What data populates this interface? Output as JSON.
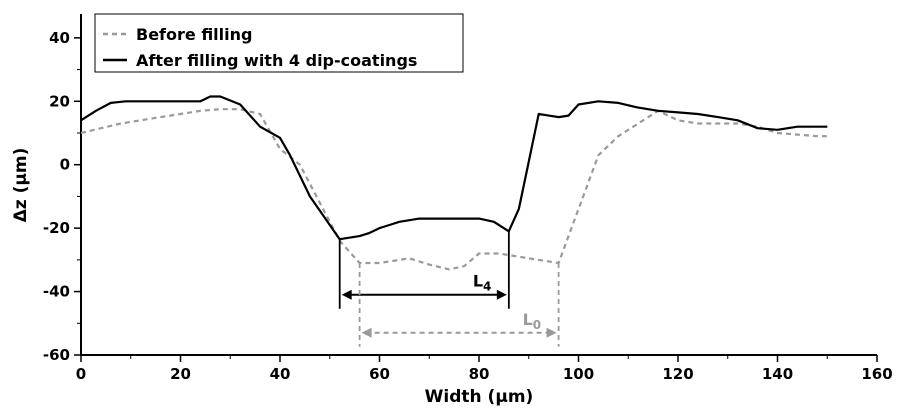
{
  "chart_data": {
    "type": "line",
    "xlabel": "Width (µm)",
    "ylabel": "Δz (µm)",
    "xlim": [
      0,
      160
    ],
    "ylim": [
      -60,
      45
    ],
    "xticks": [
      0,
      20,
      40,
      60,
      80,
      100,
      120,
      140,
      160
    ],
    "yticks": [
      -60,
      -40,
      -20,
      0,
      20,
      40
    ],
    "xtick_labels": [
      "0",
      "20",
      "40",
      "60",
      "80",
      "100",
      "120",
      "140",
      "160"
    ],
    "ytick_labels": [
      "-60",
      "-40",
      "-20",
      "0",
      "20",
      "40"
    ],
    "grid": false,
    "legend_position": "top-left",
    "series": [
      {
        "name": "Before filling",
        "style": "dashed",
        "color": "#9a9a9a",
        "x": [
          0,
          4,
          8,
          12,
          16,
          20,
          24,
          28,
          32,
          36,
          40,
          44,
          48,
          52,
          56,
          60,
          64,
          66,
          70,
          74,
          77,
          80,
          84,
          88,
          92,
          96,
          100,
          104,
          108,
          112,
          116,
          120,
          124,
          128,
          132,
          136,
          140,
          144,
          148,
          150
        ],
        "y": [
          10,
          11.5,
          13,
          14,
          15,
          16,
          17,
          17.5,
          17.5,
          16,
          5,
          0,
          -12,
          -24,
          -31,
          -31,
          -30,
          -29.5,
          -31.5,
          -33,
          -32,
          -28,
          -28,
          -29,
          -30,
          -31,
          -14,
          3,
          9,
          13,
          17,
          14,
          13,
          13,
          13,
          12,
          10,
          9.5,
          9,
          9
        ]
      },
      {
        "name": "After filling with 4 dip-coatings",
        "style": "solid",
        "color": "#000000",
        "x": [
          0,
          3,
          6,
          9,
          12,
          16,
          20,
          24,
          26,
          28,
          32,
          36,
          40,
          42,
          46,
          52,
          56,
          58,
          60,
          62,
          64,
          68,
          72,
          76,
          80,
          83,
          86,
          88,
          90,
          92,
          94,
          96,
          98,
          100,
          104,
          108,
          112,
          116,
          120,
          124,
          128,
          132,
          136,
          140,
          144,
          148,
          150
        ],
        "y": [
          14,
          17,
          19.5,
          20,
          20,
          20,
          20,
          20,
          21.5,
          21.5,
          19,
          12,
          8.5,
          3,
          -10,
          -23.5,
          -22.5,
          -21.5,
          -20,
          -19,
          -18,
          -17,
          -17,
          -17,
          -17,
          -18,
          -21,
          -14,
          1,
          16,
          15.5,
          15,
          15.5,
          19,
          20,
          19.5,
          18,
          17,
          16.5,
          16,
          15,
          14,
          11.5,
          11,
          12,
          12,
          12
        ]
      }
    ],
    "annotations": [
      {
        "label_main": "L",
        "label_sub": "4",
        "from": 52,
        "to": 86,
        "y": -41,
        "color": "#000000",
        "style": "solid",
        "ref_x": [
          52,
          86
        ],
        "ref_y": [
          -23.5,
          -21
        ]
      },
      {
        "label_main": "L",
        "label_sub": "0",
        "from": 56,
        "to": 96,
        "y": -53,
        "color": "#9a9a9a",
        "style": "dashed",
        "ref_x": [
          56,
          96
        ],
        "ref_y": [
          -31,
          -31
        ]
      }
    ]
  }
}
